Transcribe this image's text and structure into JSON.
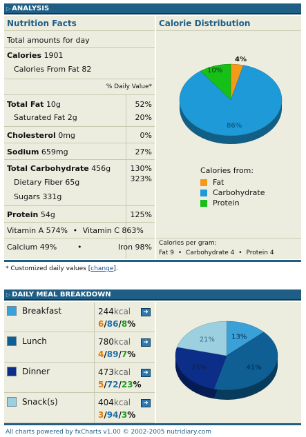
{
  "analysis": {
    "header": "ANALYSIS",
    "nutrition_title": "Nutrition Facts",
    "total_label": "Total amounts for day",
    "calories_label": "Calories",
    "calories_value": "1901",
    "calories_fat_label": "Calories From Fat",
    "calories_fat_value": "82",
    "daily_value_label": "% Daily Value*",
    "rows": {
      "total_fat": {
        "label": "Total Fat",
        "amount": "10g",
        "pct": "52%"
      },
      "saturated_fat": {
        "label": "Saturated Fat",
        "amount": "2g",
        "pct": "20%"
      },
      "cholesterol": {
        "label": "Cholesterol",
        "amount": "0mg",
        "pct": "0%"
      },
      "sodium": {
        "label": "Sodium",
        "amount": "659mg",
        "pct": "27%"
      },
      "total_carb": {
        "label": "Total Carbohydrate",
        "amount": "456g",
        "pct": "130%"
      },
      "dietary_fiber": {
        "label": "Dietary Fiber",
        "amount": "65g",
        "pct": "323%"
      },
      "sugars": {
        "label": "Sugars",
        "amount": "331g"
      },
      "protein": {
        "label": "Protein",
        "amount": "54g",
        "pct": "125%"
      }
    },
    "vitamin_a": "Vitamin A 574%",
    "vitamin_c": "Vitamin C 863%",
    "calcium": "Calcium 49%",
    "iron": "Iron 98%",
    "bullet": "•",
    "calorie_title": "Calorie Distribution",
    "pie": {
      "fat_pct": "4%",
      "carb_pct": "86%",
      "protein_pct": "10%",
      "fat_value": 4,
      "carb_value": 86,
      "protein_value": 10,
      "fat_color": "#f39a1a",
      "carb_color": "#1e9ad8",
      "protein_color": "#16c016"
    },
    "legend_title": "Calories from:",
    "legend": [
      "Fat",
      "Carbohydrate",
      "Protein"
    ],
    "per_gram_title": "Calories per gram:",
    "per_gram": [
      "Fat 9",
      "Carbohydrate 4",
      "Protein 4"
    ],
    "footnote_prefix": "* Customized daily values [",
    "footnote_link": "change",
    "footnote_suffix": "]."
  },
  "meals": {
    "header": "DAILY MEAL BREAKDOWN",
    "kcal_unit": "kcal",
    "items": [
      {
        "name": "Breakfast",
        "kcal": "244",
        "f": "6",
        "c": "86",
        "p": "8",
        "pie_pct": "13%",
        "pie_value": 13,
        "color": "#3aa0d8"
      },
      {
        "name": "Lunch",
        "kcal": "780",
        "f": "4",
        "c": "89",
        "p": "7",
        "pie_pct": "41%",
        "pie_value": 41,
        "color": "#0f5f95"
      },
      {
        "name": "Dinner",
        "kcal": "473",
        "f": "5",
        "c": "72",
        "p": "23",
        "pie_pct": "25%",
        "pie_value": 25,
        "color": "#0c2d88"
      },
      {
        "name": "Snack(s)",
        "kcal": "404",
        "f": "3",
        "c": "94",
        "p": "3",
        "pie_pct": "21%",
        "pie_value": 21,
        "color": "#9ccfe0"
      }
    ]
  },
  "footer": "All charts powered by fxCharts v1.00 © 2002-2005 nutridiary.com"
}
